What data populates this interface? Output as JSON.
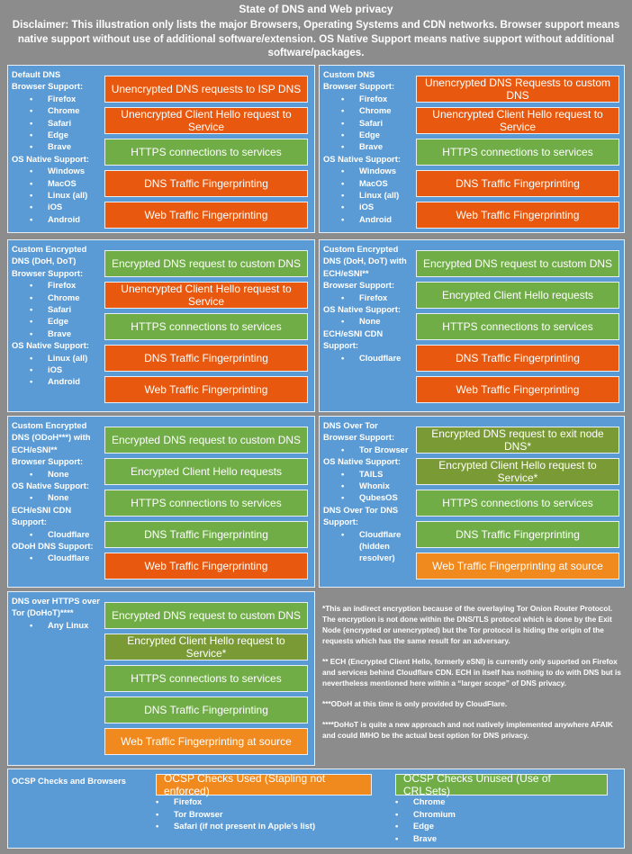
{
  "header": {
    "title": "State of DNS and Web privacy",
    "disclaimer": "Disclaimer: This illustration only lists the major Browsers, Operating Systems and CDN networks. Browser support means native support without use of additional software/extension. OS Native Support means native support without additional software/packages."
  },
  "panels": [
    {
      "title": "Default DNS",
      "sections": [
        {
          "heading": "Browser Support:",
          "items": [
            "Firefox",
            "Chrome",
            "Safari",
            "Edge",
            "Brave"
          ]
        },
        {
          "heading": "OS Native Support:",
          "items": [
            "Windows",
            "MacOS",
            "Linux (all)",
            "iOS",
            "Android"
          ]
        }
      ],
      "boxes": [
        {
          "text": "Unencrypted DNS requests to ISP DNS",
          "color": "#e8590f"
        },
        {
          "text": "Unencrypted Client Hello request to Service",
          "color": "#e8590f"
        },
        {
          "text": "HTTPS connections to services",
          "color": "#70ad47"
        },
        {
          "text": "DNS Traffic Fingerprinting",
          "color": "#e8590f"
        },
        {
          "text": "Web Traffic Fingerprinting",
          "color": "#e8590f"
        }
      ]
    },
    {
      "title": "Custom DNS",
      "sections": [
        {
          "heading": "Browser Support:",
          "items": [
            "Firefox",
            "Chrome",
            "Safari",
            "Edge",
            "Brave"
          ]
        },
        {
          "heading": "OS Native Support:",
          "items": [
            "Windows",
            "MacOS",
            "Linux (all)",
            "iOS",
            "Android"
          ]
        }
      ],
      "boxes": [
        {
          "text": "Unencrypted DNS Requests to custom DNS",
          "color": "#e8590f"
        },
        {
          "text": "Unencrypted Client Hello request to Service",
          "color": "#e8590f"
        },
        {
          "text": "HTTPS connections to services",
          "color": "#70ad47"
        },
        {
          "text": "DNS Traffic Fingerprinting",
          "color": "#e8590f"
        },
        {
          "text": "Web Traffic Fingerprinting",
          "color": "#e8590f"
        }
      ]
    },
    {
      "title": "Custom Encrypted DNS (DoH, DoT)",
      "sections": [
        {
          "heading": "Browser Support:",
          "items": [
            "Firefox",
            "Chrome",
            "Safari",
            "Edge",
            "Brave"
          ]
        },
        {
          "heading": "OS Native Support:",
          "items": [
            "Linux (all)",
            "iOS",
            "Android"
          ]
        }
      ],
      "boxes": [
        {
          "text": "Encrypted DNS request to custom DNS",
          "color": "#70ad47"
        },
        {
          "text": "Unencrypted Client Hello request to Service",
          "color": "#e8590f"
        },
        {
          "text": "HTTPS connections to services",
          "color": "#70ad47"
        },
        {
          "text": "DNS Traffic Fingerprinting",
          "color": "#e8590f"
        },
        {
          "text": "Web Traffic Fingerprinting",
          "color": "#e8590f"
        }
      ]
    },
    {
      "title": "Custom Encrypted DNS (DoH, DoT) with ECH/eSNI**",
      "sections": [
        {
          "heading": "Browser Support:",
          "items": [
            "Firefox"
          ]
        },
        {
          "heading": "OS Native Support:",
          "items": [
            "None"
          ]
        },
        {
          "heading": "ECH/eSNI CDN Support:",
          "items": [
            "Cloudflare"
          ]
        }
      ],
      "boxes": [
        {
          "text": "Encrypted DNS request to custom DNS",
          "color": "#70ad47"
        },
        {
          "text": "Encrypted Client Hello requests",
          "color": "#70ad47"
        },
        {
          "text": "HTTPS connections to services",
          "color": "#70ad47"
        },
        {
          "text": "DNS Traffic Fingerprinting",
          "color": "#e8590f"
        },
        {
          "text": "Web Traffic Fingerprinting",
          "color": "#e8590f"
        }
      ]
    },
    {
      "title": "Custom Encrypted DNS (ODoH***) with ECH/eSNI**",
      "sections": [
        {
          "heading": "Browser Support:",
          "items": [
            "None"
          ]
        },
        {
          "heading": "OS Native Support:",
          "items": [
            "None"
          ]
        },
        {
          "heading": "ECH/eSNI CDN Support:",
          "items": [
            "Cloudflare"
          ]
        },
        {
          "heading": "ODoH DNS Support:",
          "items": [
            "Cloudflare"
          ]
        }
      ],
      "boxes": [
        {
          "text": "Encrypted DNS request to custom DNS",
          "color": "#70ad47"
        },
        {
          "text": "Encrypted Client Hello requests",
          "color": "#70ad47"
        },
        {
          "text": "HTTPS connections to services",
          "color": "#70ad47"
        },
        {
          "text": "DNS Traffic Fingerprinting",
          "color": "#70ad47"
        },
        {
          "text": "Web Traffic Fingerprinting",
          "color": "#e8590f"
        }
      ]
    },
    {
      "title": "DNS Over Tor",
      "sections": [
        {
          "heading": "Browser Support:",
          "items": [
            "Tor Browser"
          ]
        },
        {
          "heading": "OS Native Support:",
          "items": [
            "TAILS",
            "Whonix",
            "QubesOS"
          ]
        },
        {
          "heading": "DNS Over Tor DNS Support:",
          "items": [
            "Cloudflare (hidden resolver)"
          ]
        }
      ],
      "boxes": [
        {
          "text": "Encrypted DNS request to exit node DNS*",
          "color": "#7a9a35"
        },
        {
          "text": "Encrypted Client Hello request to Service*",
          "color": "#7a9a35"
        },
        {
          "text": "HTTPS connections to services",
          "color": "#70ad47"
        },
        {
          "text": "DNS Traffic Fingerprinting",
          "color": "#70ad47"
        },
        {
          "text": "Web Traffic Fingerprinting at source",
          "color": "#f0891e"
        }
      ]
    },
    {
      "title": "DNS over HTTPS over Tor (DoHoT)****",
      "sections": [
        {
          "items": [
            "Any Linux"
          ]
        }
      ],
      "boxes": [
        {
          "text": "Encrypted DNS request to custom DNS",
          "color": "#70ad47"
        },
        {
          "text": "Encrypted Client Hello request to Service*",
          "color": "#7a9a35"
        },
        {
          "text": "HTTPS connections to services",
          "color": "#70ad47"
        },
        {
          "text": "DNS Traffic Fingerprinting",
          "color": "#70ad47"
        },
        {
          "text": "Web Traffic Fingerprinting at source",
          "color": "#f0891e"
        }
      ]
    }
  ],
  "notes": [
    "*This an indirect encryption because of the overlaying Tor Onion Router Protocol. The encryption is not done within the DNS/TLS protocol which is done by the Exit Node (encrypted or unencrypted) but the Tor protocol is hiding the origin of the requests which has the same result for an adversary.",
    "** ECH (Encrypted Client Hello, formerly eSNI) is currently only suported on Firefox and services behind Cloudflare CDN. ECH in itself has nothing to do with DNS but is nevertheless mentioned here within a “larger scope” of DNS privacy.",
    "***ODoH at this time is only provided by CloudFlare.",
    "****DoHoT is quite a new approach and not natively implemented anywhere AFAIK and could IMHO be the actual best option for DNS privacy."
  ],
  "ocsp": {
    "title": "OCSP Checks and Browsers",
    "groups": [
      {
        "label": "OCSP Checks Used (Stapling not enforced)",
        "color": "#f0891e",
        "items": [
          "Firefox",
          "Tor Browser",
          "Safari (if not present in Apple’s list)"
        ]
      },
      {
        "label": "OCSP Checks Unused (Use of CRLSets)",
        "color": "#70ad47",
        "items": [
          "Chrome",
          "Chromium",
          "Edge",
          "Brave"
        ]
      }
    ]
  }
}
